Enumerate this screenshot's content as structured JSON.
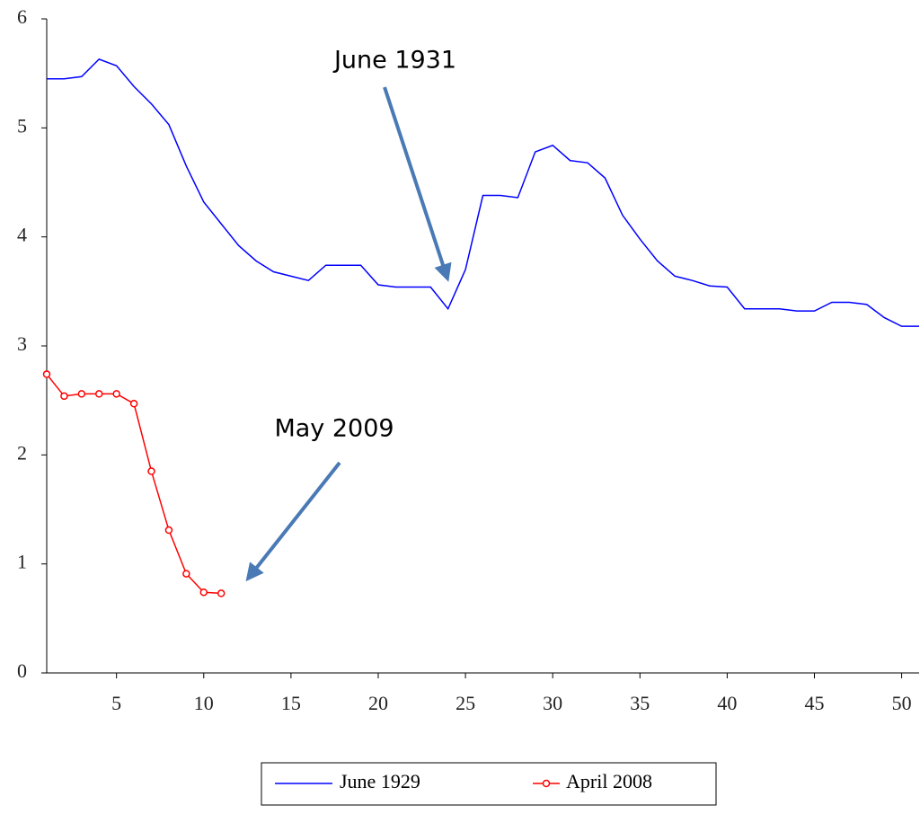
{
  "chart_data": {
    "type": "line",
    "xlim": [
      1,
      51
    ],
    "ylim": [
      0,
      6
    ],
    "xticks": [
      5,
      10,
      15,
      20,
      25,
      30,
      35,
      40,
      45,
      50
    ],
    "yticks": [
      0,
      1,
      2,
      3,
      4,
      5,
      6
    ],
    "series": [
      {
        "name": "June 1929",
        "color": "#0000ff",
        "markers": false,
        "x": [
          1,
          2,
          3,
          4,
          5,
          6,
          7,
          8,
          9,
          10,
          11,
          12,
          13,
          14,
          15,
          16,
          17,
          18,
          19,
          20,
          21,
          22,
          23,
          24,
          25,
          26,
          27,
          28,
          29,
          30,
          31,
          32,
          33,
          34,
          35,
          36,
          37,
          38,
          39,
          40,
          41,
          42,
          43,
          44,
          45,
          46,
          47,
          48,
          49,
          50,
          51
        ],
        "values": [
          5.45,
          5.45,
          5.47,
          5.63,
          5.57,
          5.38,
          5.22,
          5.03,
          4.65,
          4.32,
          4.12,
          3.92,
          3.78,
          3.68,
          3.64,
          3.6,
          3.74,
          3.74,
          3.74,
          3.56,
          3.54,
          3.54,
          3.54,
          3.34,
          3.7,
          4.38,
          4.38,
          4.36,
          4.78,
          4.84,
          4.7,
          4.68,
          4.54,
          4.2,
          3.98,
          3.78,
          3.64,
          3.6,
          3.55,
          3.54,
          3.34,
          3.34,
          3.34,
          3.32,
          3.32,
          3.4,
          3.4,
          3.38,
          3.26,
          3.18,
          3.18
        ]
      },
      {
        "name": "April 2008",
        "color": "#ff0000",
        "markers": true,
        "x": [
          1,
          2,
          3,
          4,
          5,
          6,
          7,
          8,
          9,
          10,
          11
        ],
        "values": [
          2.74,
          2.54,
          2.56,
          2.56,
          2.56,
          2.47,
          1.85,
          1.31,
          0.91,
          0.74,
          0.73
        ]
      }
    ],
    "annotations": [
      {
        "text": "June 1931"
      },
      {
        "text": "May 2009"
      }
    ]
  }
}
